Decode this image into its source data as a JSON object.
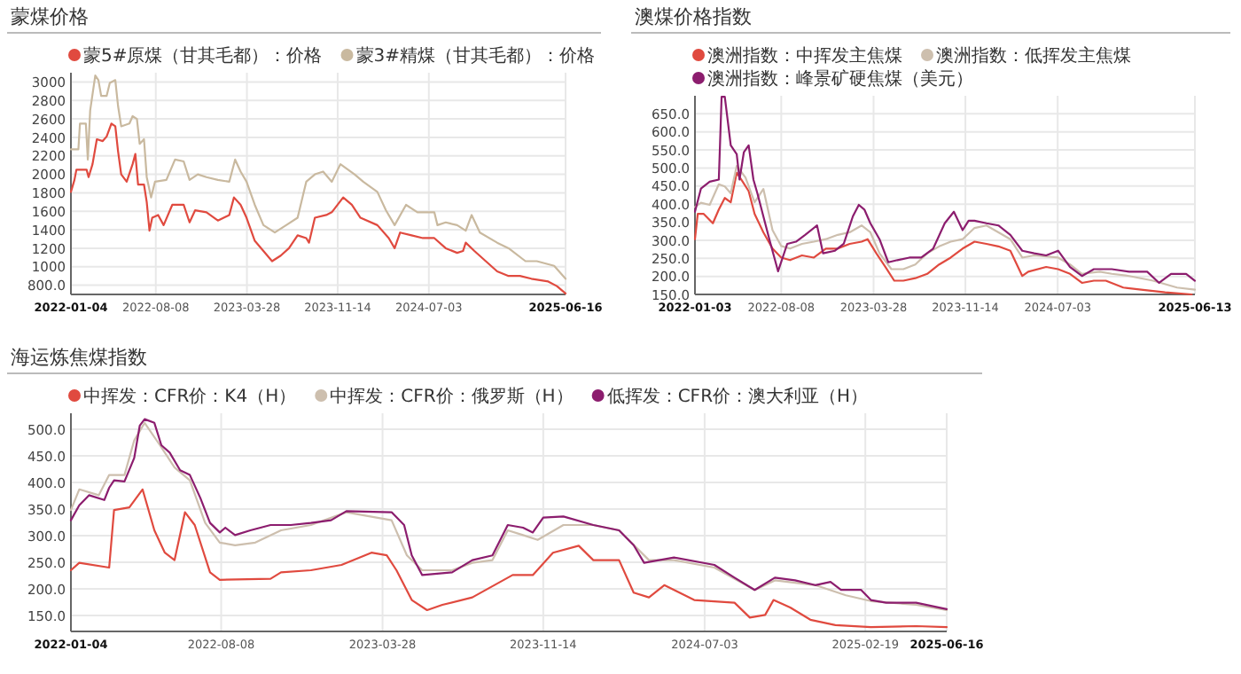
{
  "chart_data": [
    {
      "type": "line",
      "title": "蒙煤价格",
      "legend": "top",
      "grid": true,
      "xlim": [
        "2022-01-04",
        "2025-06-16"
      ],
      "xticks": [
        "2022-01-04",
        "2022-08-08",
        "2023-03-28",
        "2023-11-14",
        "2024-07-03",
        "2025-06-16"
      ],
      "ylim": [
        700,
        3100
      ],
      "yticks": [
        {
          "value": 800,
          "label": "800.0"
        },
        1000,
        1200,
        1400,
        1600,
        1800,
        2000,
        2200,
        2400,
        2600,
        2800,
        3000
      ],
      "series": [
        {
          "name": "蒙5#原煤（甘其毛都）：价格",
          "color": "#e04a3f",
          "x": [
            "2022-01-04",
            "2022-01-13",
            "2022-01-18",
            "2022-02-13",
            "2022-02-18",
            "2022-02-28",
            "2022-03-11",
            "2022-03-26",
            "2022-04-05",
            "2022-04-17",
            "2022-04-27",
            "2022-05-04",
            "2022-05-12",
            "2022-05-26",
            "2022-06-10",
            "2022-06-17",
            "2022-06-24",
            "2022-07-09",
            "2022-07-16",
            "2022-07-23",
            "2022-07-30",
            "2022-08-14",
            "2022-08-28",
            "2022-09-19",
            "2022-10-18",
            "2022-11-02",
            "2022-11-16",
            "2022-12-15",
            "2023-01-13",
            "2023-02-11",
            "2023-02-23",
            "2023-03-12",
            "2023-03-27",
            "2023-04-17",
            "2023-05-09",
            "2023-05-31",
            "2023-06-22",
            "2023-07-13",
            "2023-08-04",
            "2023-08-26",
            "2023-09-02",
            "2023-09-17",
            "2023-10-16",
            "2023-10-30",
            "2023-11-28",
            "2023-12-20",
            "2024-01-11",
            "2024-02-23",
            "2024-03-23",
            "2024-04-07",
            "2024-04-21",
            "2024-05-20",
            "2024-06-18",
            "2024-07-17",
            "2024-08-15",
            "2024-09-13",
            "2024-09-28",
            "2024-10-05",
            "2024-10-27",
            "2024-11-25",
            "2024-12-24",
            "2025-01-22",
            "2025-02-20",
            "2025-03-21",
            "2025-05-03",
            "2025-05-25",
            "2025-06-16"
          ],
          "values": [
            1810,
            1940,
            2050,
            2050,
            1970,
            2110,
            2380,
            2360,
            2410,
            2550,
            2520,
            2250,
            2000,
            1920,
            2110,
            2220,
            1890,
            1890,
            1700,
            1390,
            1530,
            1560,
            1450,
            1670,
            1670,
            1480,
            1610,
            1590,
            1500,
            1560,
            1750,
            1670,
            1530,
            1280,
            1170,
            1060,
            1120,
            1200,
            1340,
            1310,
            1260,
            1530,
            1560,
            1590,
            1750,
            1670,
            1530,
            1450,
            1310,
            1200,
            1370,
            1340,
            1310,
            1310,
            1200,
            1150,
            1170,
            1260,
            1170,
            1060,
            950,
            900,
            900,
            870,
            840,
            790,
            710
          ]
        },
        {
          "name": "蒙3#精煤（甘其毛都）：价格",
          "color": "#c9b99f",
          "x": [
            "2022-01-04",
            "2022-01-23",
            "2022-01-27",
            "2022-02-11",
            "2022-02-16",
            "2022-02-22",
            "2022-03-07",
            "2022-03-15",
            "2022-03-22",
            "2022-04-05",
            "2022-04-13",
            "2022-04-27",
            "2022-05-04",
            "2022-05-12",
            "2022-06-02",
            "2022-06-10",
            "2022-06-21",
            "2022-06-28",
            "2022-07-09",
            "2022-07-16",
            "2022-07-27",
            "2022-08-06",
            "2022-09-04",
            "2022-09-26",
            "2022-10-18",
            "2022-11-02",
            "2022-11-23",
            "2022-12-15",
            "2023-01-13",
            "2023-02-11",
            "2023-02-26",
            "2023-03-12",
            "2023-03-27",
            "2023-04-17",
            "2023-05-09",
            "2023-06-07",
            "2023-07-06",
            "2023-08-04",
            "2023-08-26",
            "2023-09-17",
            "2023-10-08",
            "2023-10-30",
            "2023-11-21",
            "2023-12-27",
            "2024-01-18",
            "2024-02-23",
            "2024-03-16",
            "2024-04-07",
            "2024-05-06",
            "2024-06-04",
            "2024-07-17",
            "2024-07-25",
            "2024-08-15",
            "2024-09-13",
            "2024-10-05",
            "2024-10-20",
            "2024-11-10",
            "2024-12-24",
            "2025-01-22",
            "2025-03-06",
            "2025-04-04",
            "2025-05-18",
            "2025-06-16"
          ],
          "values": [
            2270,
            2270,
            2550,
            2550,
            2160,
            2690,
            3070,
            3020,
            2850,
            2850,
            2990,
            3020,
            2740,
            2520,
            2550,
            2630,
            2600,
            2330,
            2380,
            1970,
            1750,
            1920,
            1940,
            2160,
            2140,
            1940,
            2000,
            1970,
            1940,
            1920,
            2160,
            2030,
            1920,
            1670,
            1450,
            1370,
            1450,
            1530,
            1920,
            2000,
            2030,
            1920,
            2110,
            2000,
            1920,
            1810,
            1610,
            1450,
            1670,
            1590,
            1590,
            1450,
            1480,
            1450,
            1390,
            1560,
            1370,
            1260,
            1200,
            1060,
            1060,
            1010,
            870
          ]
        }
      ]
    },
    {
      "type": "line",
      "title": "澳煤价格指数",
      "legend": "top",
      "grid": true,
      "xlim": [
        "2022-01-03",
        "2025-06-13"
      ],
      "xticks": [
        "2022-01-03",
        "2022-08-08",
        "2023-03-28",
        "2023-11-14",
        "2024-07-03",
        "2025-06-13"
      ],
      "ylim": [
        150,
        700
      ],
      "yticks": [
        {
          "value": 150,
          "label": "150.0"
        },
        {
          "value": 200,
          "label": "200.0"
        },
        {
          "value": 250,
          "label": "250.0"
        },
        {
          "value": 300,
          "label": "300.0"
        },
        {
          "value": 350,
          "label": "350.0"
        },
        {
          "value": 400,
          "label": "400.0"
        },
        {
          "value": 450,
          "label": "450.0"
        },
        {
          "value": 500,
          "label": "500.0"
        },
        {
          "value": 550,
          "label": "550.0"
        },
        {
          "value": 600,
          "label": "600.0"
        },
        {
          "value": 650,
          "label": "650.0"
        }
      ],
      "series": [
        {
          "name": "澳洲指数：中挥发主焦煤",
          "color": "#e04a3f",
          "x": [
            "2022-01-03",
            "2022-01-10",
            "2022-01-25",
            "2022-02-17",
            "2022-03-04",
            "2022-03-19",
            "2022-04-03",
            "2022-04-18",
            "2022-05-03",
            "2022-05-18",
            "2022-06-02",
            "2022-06-24",
            "2022-07-17",
            "2022-08-08",
            "2022-08-30",
            "2022-09-29",
            "2022-10-29",
            "2022-11-28",
            "2022-12-28",
            "2023-01-27",
            "2023-02-26",
            "2023-03-13",
            "2023-04-04",
            "2023-04-27",
            "2023-05-19",
            "2023-06-11",
            "2023-07-11",
            "2023-08-10",
            "2023-09-09",
            "2023-10-08",
            "2023-11-07",
            "2023-12-07",
            "2024-01-06",
            "2024-02-05",
            "2024-03-06",
            "2024-04-05",
            "2024-04-20",
            "2024-06-04",
            "2024-07-04",
            "2024-08-03",
            "2024-09-02",
            "2024-10-02",
            "2024-11-01",
            "2024-12-15",
            "2025-01-29",
            "2025-03-30",
            "2025-06-05"
          ],
          "values": [
            303,
            373,
            373,
            347,
            385,
            417,
            405,
            487,
            462,
            436,
            373,
            322,
            277,
            252,
            245,
            258,
            252,
            277,
            277,
            290,
            296,
            303,
            264,
            226,
            188,
            188,
            195,
            207,
            233,
            252,
            277,
            296,
            290,
            283,
            271,
            201,
            213,
            226,
            220,
            207,
            182,
            188,
            188,
            169,
            163,
            156,
            150
          ]
        },
        {
          "name": "澳洲指数：低挥发主焦煤",
          "color": "#cdbfae",
          "x": [
            "2022-01-03",
            "2022-01-18",
            "2022-02-09",
            "2022-03-04",
            "2022-03-19",
            "2022-04-03",
            "2022-04-18",
            "2022-05-10",
            "2022-06-02",
            "2022-06-24",
            "2022-07-17",
            "2022-08-08",
            "2022-08-30",
            "2022-09-29",
            "2022-10-29",
            "2022-11-28",
            "2022-12-28",
            "2023-01-27",
            "2023-02-26",
            "2023-03-20",
            "2023-04-12",
            "2023-05-12",
            "2023-06-11",
            "2023-07-11",
            "2023-08-10",
            "2023-09-09",
            "2023-10-08",
            "2023-11-07",
            "2023-12-07",
            "2024-01-06",
            "2024-02-05",
            "2024-03-06",
            "2024-04-05",
            "2024-05-05",
            "2024-07-04",
            "2024-08-03",
            "2024-09-02",
            "2024-10-17",
            "2024-11-16",
            "2024-12-30",
            "2025-02-28",
            "2025-04-29",
            "2025-06-13"
          ],
          "values": [
            392,
            404,
            398,
            455,
            449,
            430,
            506,
            474,
            405,
            442,
            328,
            284,
            277,
            290,
            296,
            303,
            315,
            322,
            341,
            322,
            264,
            220,
            220,
            233,
            264,
            283,
            296,
            303,
            334,
            341,
            322,
            303,
            252,
            258,
            252,
            233,
            207,
            213,
            207,
            201,
            188,
            169,
            163
          ]
        },
        {
          "name": "澳洲指数：峰景矿硬焦煤（美元）",
          "color": "#8c1d6e",
          "x": [
            "2022-01-03",
            "2022-01-18",
            "2022-02-09",
            "2022-03-04",
            "2022-03-11",
            "2022-03-19",
            "2022-04-03",
            "2022-04-18",
            "2022-04-25",
            "2022-05-06",
            "2022-05-18",
            "2022-05-30",
            "2022-06-09",
            "2022-06-24",
            "2022-07-09",
            "2022-07-31",
            "2022-08-23",
            "2022-09-14",
            "2022-10-07",
            "2022-11-06",
            "2022-11-21",
            "2022-12-21",
            "2023-01-12",
            "2023-02-04",
            "2023-02-19",
            "2023-03-05",
            "2023-03-20",
            "2023-04-12",
            "2023-05-04",
            "2023-05-27",
            "2023-06-26",
            "2023-07-26",
            "2023-08-25",
            "2023-09-23",
            "2023-10-16",
            "2023-11-07",
            "2023-11-22",
            "2023-12-07",
            "2024-01-06",
            "2024-02-05",
            "2024-03-06",
            "2024-04-05",
            "2024-05-05",
            "2024-06-04",
            "2024-07-04",
            "2024-08-03",
            "2024-09-02",
            "2024-10-02",
            "2024-11-16",
            "2024-12-30",
            "2025-02-13",
            "2025-03-15",
            "2025-04-14",
            "2025-05-22",
            "2025-06-13"
          ],
          "values": [
            379,
            443,
            462,
            468,
            697,
            697,
            563,
            538,
            468,
            544,
            563,
            468,
            430,
            366,
            303,
            214,
            290,
            296,
            315,
            341,
            264,
            271,
            290,
            366,
            398,
            385,
            347,
            303,
            239,
            245,
            252,
            252,
            277,
            347,
            379,
            328,
            354,
            354,
            347,
            341,
            315,
            271,
            264,
            258,
            271,
            226,
            201,
            220,
            220,
            213,
            213,
            182,
            207,
            207,
            188
          ]
        }
      ]
    },
    {
      "type": "line",
      "title": "海运炼焦煤指数",
      "legend": "top",
      "grid": true,
      "xlim": [
        "2022-01-04",
        "2025-06-16"
      ],
      "xticks": [
        "2022-01-04",
        "2022-08-08",
        "2023-03-28",
        "2023-11-14",
        "2024-07-03",
        "2025-02-19",
        "2025-06-16"
      ],
      "ylim": [
        120,
        530
      ],
      "yticks": [
        {
          "value": 150,
          "label": "150.0"
        },
        {
          "value": 200,
          "label": "200.0"
        },
        {
          "value": 250,
          "label": "250.0"
        },
        {
          "value": 300,
          "label": "300.0"
        },
        {
          "value": 350,
          "label": "350.0"
        },
        {
          "value": 400,
          "label": "400.0"
        },
        {
          "value": 450,
          "label": "450.0"
        },
        {
          "value": 500,
          "label": "500.0"
        }
      ],
      "series": [
        {
          "name": "中挥发：CFR价：K4（H）",
          "color": "#e04a3f",
          "x": [
            "2022-01-04",
            "2022-01-16",
            "2022-02-28",
            "2022-03-07",
            "2022-03-29",
            "2022-04-17",
            "2022-05-04",
            "2022-05-19",
            "2022-06-02",
            "2022-06-17",
            "2022-07-01",
            "2022-07-23",
            "2022-08-06",
            "2022-10-18",
            "2022-11-02",
            "2022-12-15",
            "2023-01-28",
            "2023-03-12",
            "2023-04-03",
            "2023-04-17",
            "2023-05-09",
            "2023-05-31",
            "2023-06-22",
            "2023-08-04",
            "2023-10-01",
            "2023-10-30",
            "2023-11-28",
            "2024-01-04",
            "2024-01-25",
            "2024-03-02",
            "2024-03-23",
            "2024-04-14",
            "2024-05-06",
            "2024-06-18",
            "2024-08-15",
            "2024-09-06",
            "2024-09-28",
            "2024-10-10",
            "2024-11-03",
            "2024-12-02",
            "2025-01-07",
            "2025-02-27",
            "2025-05-03",
            "2025-06-16"
          ],
          "values": [
            235,
            249,
            240,
            348,
            353,
            387,
            310,
            268,
            254,
            344,
            320,
            231,
            217,
            219,
            231,
            235,
            245,
            268,
            263,
            235,
            179,
            160,
            170,
            184,
            226,
            226,
            268,
            281,
            254,
            254,
            193,
            184,
            207,
            179,
            174,
            146,
            151,
            179,
            165,
            142,
            132,
            128,
            130,
            128
          ]
        },
        {
          "name": "中挥发：CFR价：俄罗斯（H）",
          "color": "#cdbfae",
          "x": [
            "2022-01-04",
            "2022-01-16",
            "2022-02-13",
            "2022-02-28",
            "2022-03-22",
            "2022-04-05",
            "2022-04-20",
            "2022-05-12",
            "2022-06-02",
            "2022-06-24",
            "2022-07-16",
            "2022-08-06",
            "2022-08-28",
            "2022-09-26",
            "2022-11-02",
            "2022-12-15",
            "2023-02-04",
            "2023-04-10",
            "2023-05-02",
            "2023-05-24",
            "2023-07-06",
            "2023-08-04",
            "2023-09-02",
            "2023-09-24",
            "2023-10-16",
            "2023-11-06",
            "2023-12-13",
            "2024-01-25",
            "2024-03-02",
            "2024-04-14",
            "2024-05-20",
            "2024-07-17",
            "2024-09-13",
            "2024-10-12",
            "2024-12-09",
            "2025-01-22",
            "2025-02-27",
            "2025-05-03",
            "2025-06-16"
          ],
          "values": [
            348,
            387,
            376,
            414,
            414,
            479,
            512,
            470,
            428,
            404,
            324,
            287,
            282,
            287,
            310,
            320,
            344,
            329,
            263,
            235,
            235,
            249,
            254,
            310,
            301,
            292,
            320,
            320,
            310,
            254,
            254,
            240,
            198,
            216,
            207,
            188,
            177,
            170,
            160
          ]
        },
        {
          "name": "低挥发：CFR价：澳大利亚（H）",
          "color": "#8c1d6e",
          "x": [
            "2022-01-04",
            "2022-01-16",
            "2022-01-30",
            "2022-02-21",
            "2022-02-28",
            "2022-03-07",
            "2022-03-22",
            "2022-04-05",
            "2022-04-13",
            "2022-04-20",
            "2022-05-04",
            "2022-05-14",
            "2022-05-26",
            "2022-06-10",
            "2022-06-24",
            "2022-07-09",
            "2022-07-23",
            "2022-08-06",
            "2022-08-14",
            "2022-08-28",
            "2022-09-19",
            "2022-10-18",
            "2022-11-16",
            "2022-12-15",
            "2023-01-13",
            "2023-02-04",
            "2023-04-10",
            "2023-04-28",
            "2023-05-09",
            "2023-05-24",
            "2023-07-06",
            "2023-08-04",
            "2023-09-02",
            "2023-09-24",
            "2023-10-16",
            "2023-10-30",
            "2023-11-14",
            "2023-12-13",
            "2024-01-25",
            "2024-03-02",
            "2024-03-23",
            "2024-04-07",
            "2024-05-20",
            "2024-07-17",
            "2024-08-15",
            "2024-09-13",
            "2024-10-12",
            "2024-11-10",
            "2024-12-09",
            "2024-12-31",
            "2025-01-15",
            "2025-02-13",
            "2025-02-27",
            "2025-03-21",
            "2025-05-03",
            "2025-06-16"
          ],
          "values": [
            329,
            357,
            376,
            367,
            390,
            404,
            402,
            446,
            507,
            519,
            512,
            470,
            456,
            423,
            414,
            371,
            324,
            306,
            315,
            301,
            310,
            320,
            320,
            324,
            329,
            346,
            344,
            320,
            263,
            226,
            231,
            254,
            263,
            320,
            315,
            306,
            334,
            336,
            320,
            310,
            282,
            249,
            259,
            245,
            221,
            198,
            221,
            216,
            207,
            213,
            198,
            198,
            179,
            174,
            174,
            162
          ]
        }
      ]
    }
  ]
}
